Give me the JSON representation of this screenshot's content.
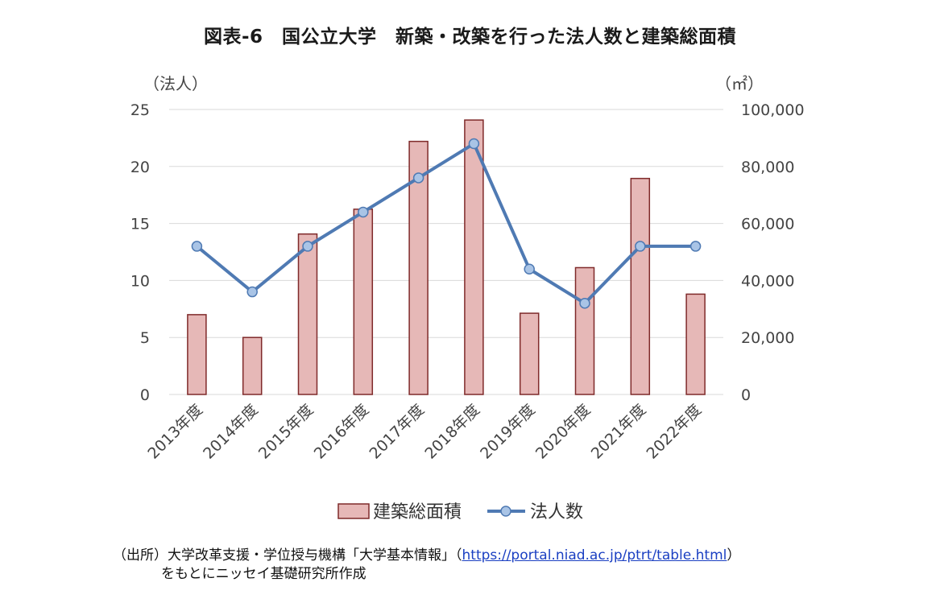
{
  "title": "図表-6　国公立大学　新築・改築を行った法人数と建築総面積",
  "chart_data": {
    "type": "bar+line",
    "categories": [
      "2013年度",
      "2014年度",
      "2015年度",
      "2016年度",
      "2017年度",
      "2018年度",
      "2019年度",
      "2020年度",
      "2021年度",
      "2022年度"
    ],
    "series": [
      {
        "name": "建築総面積",
        "type": "bar",
        "axis": "right",
        "color": "#e6b8b7",
        "edge_color": "#7f2a2a",
        "values": [
          28000,
          20000,
          56300,
          65000,
          88800,
          96300,
          28500,
          44500,
          75800,
          35200
        ]
      },
      {
        "name": "法人数",
        "type": "line",
        "axis": "left",
        "color": "#4f7ab3",
        "marker_color": "#a9c4e6",
        "values": [
          13,
          9,
          13,
          16,
          19,
          22,
          11,
          8,
          13,
          13
        ]
      }
    ],
    "left_axis": {
      "unit_label": "（法人）",
      "ylim": [
        0,
        25
      ],
      "ticks": [
        "0",
        "5",
        "10",
        "15",
        "20",
        "25"
      ]
    },
    "right_axis": {
      "unit_label": "（㎡）",
      "ylim": [
        0,
        100000
      ],
      "ticks": [
        "0",
        "20,000",
        "40,000",
        "60,000",
        "80,000",
        "100,000"
      ]
    },
    "grid": true,
    "legend_position": "bottom"
  },
  "source": {
    "line1_prefix": "（出所）大学改革支援・学位授与機構「大学基本情報」（",
    "url": "https://portal.niad.ac.jp/ptrt/table.html",
    "line1_suffix": "）",
    "line2": "をもとにニッセイ基礎研究所作成"
  }
}
